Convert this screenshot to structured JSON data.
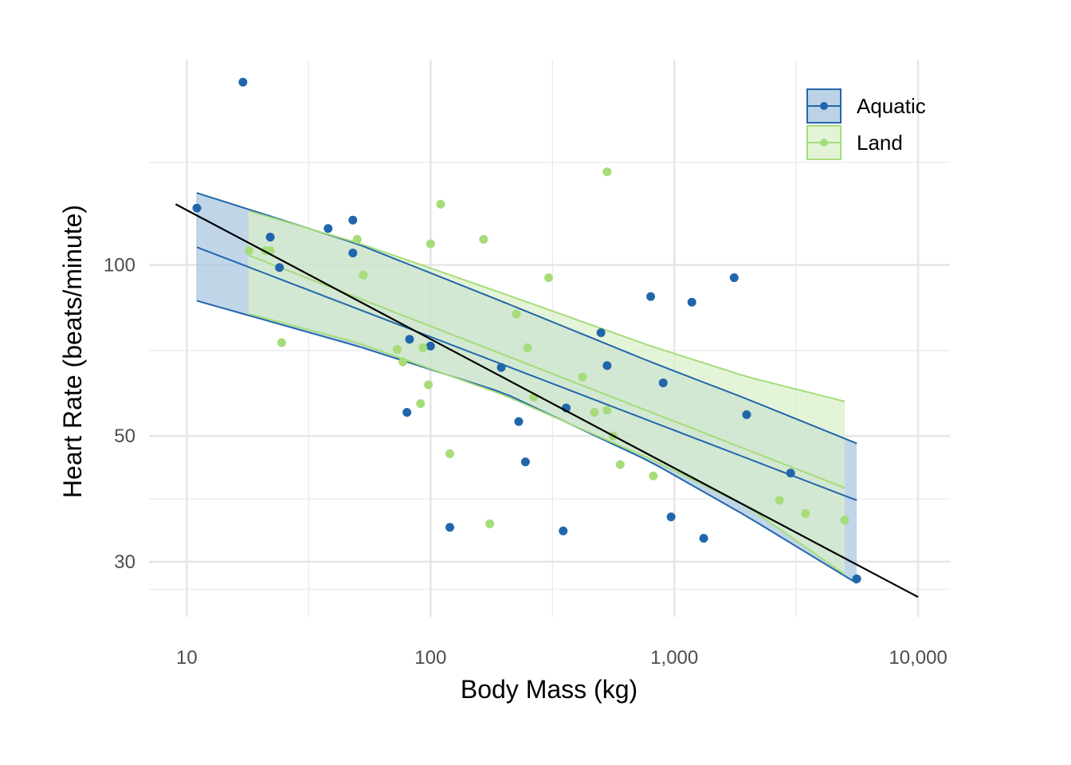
{
  "chart_data": {
    "type": "scatter",
    "xlabel": "Body Mass (kg)",
    "ylabel": "Heart Rate (beats/minute)",
    "x_scale": "log10",
    "y_scale": "log10",
    "xlim": [
      7,
      13500
    ],
    "ylim": [
      24,
      230
    ],
    "x_ticks": [
      10,
      100,
      1000,
      10000
    ],
    "x_tick_labels": [
      "10",
      "100",
      "1,000",
      "10,000"
    ],
    "y_ticks": [
      30,
      50,
      100
    ],
    "y_tick_labels": [
      "30",
      "50",
      "100"
    ],
    "grid": true,
    "legend_position": "top-right",
    "series": [
      {
        "name": "Aquatic",
        "color": "#2166ac",
        "fill": "#a6c3df",
        "points": [
          [
            11,
            126
          ],
          [
            17,
            210
          ],
          [
            22,
            112
          ],
          [
            24,
            99
          ],
          [
            38,
            116
          ],
          [
            48,
            120
          ],
          [
            48,
            105
          ],
          [
            80,
            55
          ],
          [
            82,
            74
          ],
          [
            100,
            72
          ],
          [
            120,
            34.5
          ],
          [
            195,
            66
          ],
          [
            230,
            53
          ],
          [
            245,
            45
          ],
          [
            350,
            34
          ],
          [
            360,
            56
          ],
          [
            500,
            76
          ],
          [
            530,
            66.5
          ],
          [
            800,
            88
          ],
          [
            900,
            62
          ],
          [
            970,
            36
          ],
          [
            1180,
            86
          ],
          [
            1320,
            33
          ],
          [
            1760,
            95
          ],
          [
            1980,
            54.5
          ],
          [
            3000,
            43
          ],
          [
            5600,
            28
          ]
        ],
        "fit": [
          [
            11,
            107.5
          ],
          [
            5600,
            38.5
          ]
        ],
        "ci_upper": [
          [
            11,
            134
          ],
          [
            50,
            109
          ],
          [
            200,
            86
          ],
          [
            800,
            67.5
          ],
          [
            2000,
            58
          ],
          [
            5600,
            48.5
          ]
        ],
        "ci_lower": [
          [
            11,
            86.5
          ],
          [
            50,
            72
          ],
          [
            200,
            59.5
          ],
          [
            800,
            45
          ],
          [
            2000,
            36
          ],
          [
            5600,
            27.5
          ]
        ]
      },
      {
        "name": "Land",
        "color": "#a6dc7a",
        "fill": "#d9efc8",
        "points": [
          [
            18,
            106
          ],
          [
            21,
            106
          ],
          [
            22,
            106
          ],
          [
            24.5,
            73
          ],
          [
            50,
            111
          ],
          [
            53,
            96
          ],
          [
            73,
            71
          ],
          [
            77,
            67.5
          ],
          [
            91,
            57
          ],
          [
            93,
            71.5
          ],
          [
            98,
            61.5
          ],
          [
            100,
            109
          ],
          [
            110,
            128
          ],
          [
            120,
            46.5
          ],
          [
            165,
            111
          ],
          [
            175,
            35
          ],
          [
            225,
            82
          ],
          [
            250,
            71.5
          ],
          [
            265,
            58.5
          ],
          [
            305,
            95
          ],
          [
            420,
            63.5
          ],
          [
            470,
            55
          ],
          [
            530,
            55.5
          ],
          [
            530,
            146
          ],
          [
            560,
            50
          ],
          [
            600,
            44.5
          ],
          [
            820,
            42.5
          ],
          [
            2700,
            38.5
          ],
          [
            3450,
            36.5
          ],
          [
            5000,
            35.5
          ]
        ],
        "fit": [
          [
            18,
            104
          ],
          [
            5000,
            40.5
          ]
        ],
        "ci_upper": [
          [
            18,
            124.5
          ],
          [
            50,
            109.5
          ],
          [
            200,
            89
          ],
          [
            800,
            72
          ],
          [
            2000,
            63.5
          ],
          [
            5000,
            57.5
          ]
        ],
        "ci_lower": [
          [
            18,
            82
          ],
          [
            50,
            73
          ],
          [
            200,
            59
          ],
          [
            800,
            45.5
          ],
          [
            2000,
            37.5
          ],
          [
            5000,
            28.5
          ]
        ]
      }
    ],
    "overall_fit": {
      "color": "#000000",
      "line": [
        [
          9,
          128
        ],
        [
          10000,
          26
        ]
      ]
    }
  }
}
